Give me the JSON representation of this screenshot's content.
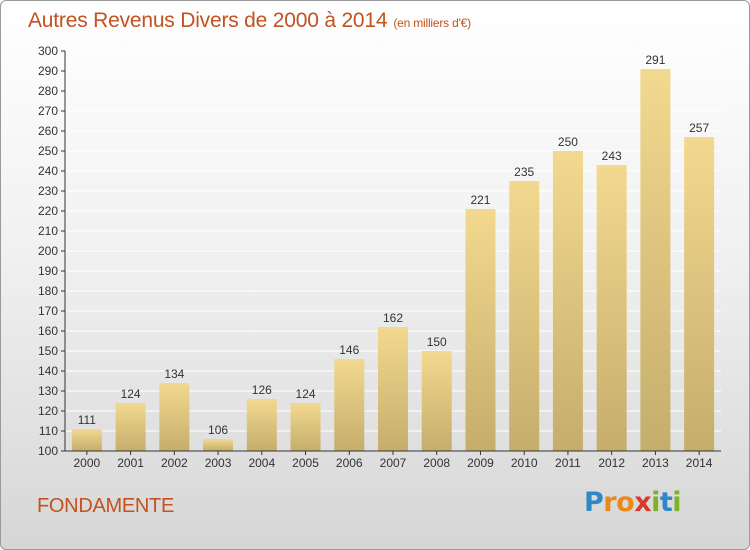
{
  "chart_data": {
    "type": "bar",
    "title": "Autres Revenus Divers de 2000 à 2014",
    "unit": "(en milliers d'€)",
    "categories": [
      "2000",
      "2001",
      "2002",
      "2003",
      "2004",
      "2005",
      "2006",
      "2007",
      "2008",
      "2009",
      "2010",
      "2011",
      "2012",
      "2013",
      "2014"
    ],
    "values": [
      111,
      124,
      134,
      106,
      126,
      124,
      146,
      162,
      150,
      221,
      235,
      250,
      243,
      291,
      257
    ],
    "ylim": [
      100,
      300
    ],
    "yticks": [
      100,
      110,
      120,
      130,
      140,
      150,
      160,
      170,
      180,
      190,
      200,
      210,
      220,
      230,
      240,
      250,
      260,
      270,
      280,
      290,
      300
    ],
    "xlabel": "",
    "ylabel": "",
    "grid": true,
    "bar_color": "#e8cd87"
  },
  "footer": {
    "place": "FONDAMENTE",
    "logo_letters": [
      {
        "char": "P",
        "color": "#2f87c8"
      },
      {
        "char": "r",
        "color": "#e88a1a"
      },
      {
        "char": "o",
        "color": "#e88a1a"
      },
      {
        "char": "x",
        "color": "#d53a2a"
      },
      {
        "char": "i",
        "color": "#79b428"
      },
      {
        "char": "t",
        "color": "#2f87c8"
      },
      {
        "char": "i",
        "color": "#79b428"
      }
    ]
  },
  "colors": {
    "title": "#c2521f",
    "axis": "#333333"
  }
}
